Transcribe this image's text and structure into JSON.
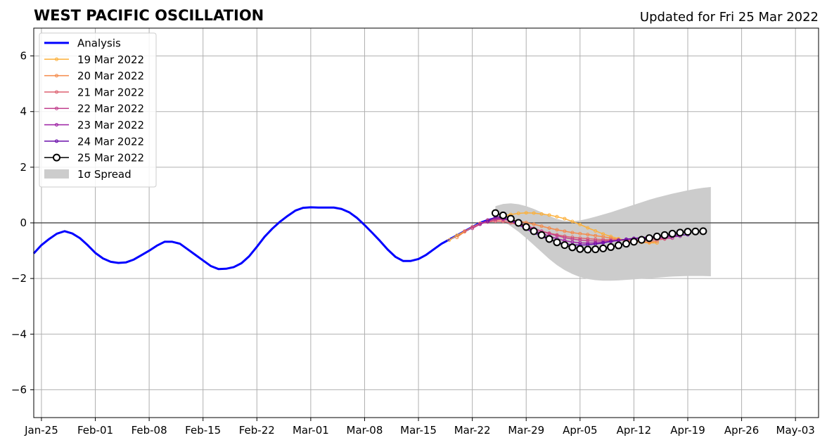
{
  "chart_data": {
    "type": "line",
    "title": "WEST PACIFIC OSCILLATION",
    "subtitle": "Updated for Fri 25 Mar 2022",
    "xlabel": "",
    "ylabel": "",
    "xlim": [
      "2022-01-24",
      "2022-05-06"
    ],
    "ylim": [
      -7,
      7
    ],
    "x_ticks": [
      "Jan-25",
      "Feb-01",
      "Feb-08",
      "Feb-15",
      "Feb-22",
      "Mar-01",
      "Mar-08",
      "Mar-15",
      "Mar-22",
      "Mar-29",
      "Apr-05",
      "Apr-12",
      "Apr-19",
      "Apr-26",
      "May-03"
    ],
    "x_tick_dates": [
      "2022-01-25",
      "2022-02-01",
      "2022-02-08",
      "2022-02-15",
      "2022-02-22",
      "2022-03-01",
      "2022-03-08",
      "2022-03-15",
      "2022-03-22",
      "2022-03-29",
      "2022-04-05",
      "2022-04-12",
      "2022-04-19",
      "2022-04-26",
      "2022-05-03"
    ],
    "y_ticks": [
      6,
      4,
      2,
      0,
      -2,
      -4,
      -6
    ],
    "y_tick_labels": [
      "6",
      "4",
      "2",
      "0",
      "−2",
      "−4",
      "−6"
    ],
    "grid": true,
    "legend_position": "top-left",
    "legend": [
      {
        "label": "Analysis",
        "color": "#0000ff",
        "style": "thick-line"
      },
      {
        "label": "19 Mar 2022",
        "color": "#fcb03a",
        "style": "line-dots"
      },
      {
        "label": "20 Mar 2022",
        "color": "#f48a4a",
        "style": "line-dots"
      },
      {
        "label": "21 Mar 2022",
        "color": "#dd6170",
        "style": "line-dots"
      },
      {
        "label": "22 Mar 2022",
        "color": "#c2408e",
        "style": "line-dots"
      },
      {
        "label": "23 Mar 2022",
        "color": "#9c1fa3",
        "style": "line-dots"
      },
      {
        "label": "24 Mar 2022",
        "color": "#6a0eaa",
        "style": "line-dots"
      },
      {
        "label": "25 Mar 2022",
        "color": "#000000",
        "style": "open-circles"
      },
      {
        "label": "1σ Spread",
        "color": "#cccccc",
        "style": "patch"
      }
    ],
    "analysis": {
      "name": "Analysis",
      "color": "#0000ff",
      "start": "2022-01-24",
      "values": [
        -1.1,
        -0.8,
        -0.58,
        -0.39,
        -0.3,
        -0.38,
        -0.55,
        -0.8,
        -1.08,
        -1.28,
        -1.4,
        -1.44,
        -1.42,
        -1.32,
        -1.16,
        -1.0,
        -0.82,
        -0.68,
        -0.68,
        -0.75,
        -0.95,
        -1.15,
        -1.35,
        -1.55,
        -1.66,
        -1.65,
        -1.59,
        -1.45,
        -1.2,
        -0.86,
        -0.5,
        -0.21,
        0.04,
        0.25,
        0.44,
        0.54,
        0.56,
        0.55,
        0.55,
        0.55,
        0.5,
        0.38,
        0.18,
        -0.08,
        -0.36,
        -0.65,
        -0.96,
        -1.22,
        -1.37,
        -1.37,
        -1.3,
        -1.15,
        -0.95,
        -0.75,
        -0.6,
        -0.45,
        -0.3,
        -0.15,
        0.0,
        0.1,
        0.17,
        0.2
      ]
    },
    "forecasts": [
      {
        "name": "19 Mar 2022",
        "color": "#fcb03a",
        "start": "2022-03-19",
        "values": [
          -0.62,
          -0.45,
          -0.3,
          -0.15,
          -0.02,
          0.08,
          0.17,
          0.24,
          0.3,
          0.34,
          0.36,
          0.35,
          0.32,
          0.28,
          0.22,
          0.15,
          0.05,
          -0.06,
          -0.18,
          -0.29,
          -0.4,
          -0.49,
          -0.57,
          -0.63,
          -0.67,
          -0.7,
          -0.72,
          -0.72
        ]
      },
      {
        "name": "20 Mar 2022",
        "color": "#f48a4a",
        "start": "2022-03-20",
        "values": [
          -0.52,
          -0.32,
          -0.15,
          -0.02,
          0.06,
          0.1,
          0.11,
          0.1,
          0.06,
          0.01,
          -0.05,
          -0.12,
          -0.19,
          -0.25,
          -0.3,
          -0.35,
          -0.39,
          -0.42,
          -0.46,
          -0.5,
          -0.55,
          -0.6,
          -0.64,
          -0.67,
          -0.69,
          -0.69,
          -0.67
        ]
      },
      {
        "name": "21 Mar 2022",
        "color": "#dd6170",
        "start": "2022-03-21",
        "values": [
          -0.3,
          -0.15,
          -0.04,
          0.03,
          0.06,
          0.05,
          0.0,
          -0.07,
          -0.15,
          -0.22,
          -0.3,
          -0.37,
          -0.43,
          -0.48,
          -0.52,
          -0.55,
          -0.57,
          -0.59,
          -0.6,
          -0.61,
          -0.62,
          -0.63,
          -0.64,
          -0.64,
          -0.63,
          -0.61,
          -0.58
        ]
      },
      {
        "name": "22 Mar 2022",
        "color": "#c2408e",
        "start": "2022-03-22",
        "values": [
          -0.2,
          -0.05,
          0.05,
          0.12,
          0.13,
          0.08,
          0.0,
          -0.1,
          -0.2,
          -0.3,
          -0.39,
          -0.46,
          -0.53,
          -0.58,
          -0.62,
          -0.64,
          -0.65,
          -0.65,
          -0.64,
          -0.62,
          -0.6,
          -0.58,
          -0.57,
          -0.56,
          -0.56,
          -0.56,
          -0.55
        ]
      },
      {
        "name": "23 Mar 2022",
        "color": "#9c1fa3",
        "start": "2022-03-23",
        "values": [
          -0.05,
          0.1,
          0.17,
          0.15,
          0.08,
          -0.02,
          -0.14,
          -0.26,
          -0.38,
          -0.48,
          -0.57,
          -0.64,
          -0.69,
          -0.72,
          -0.73,
          -0.72,
          -0.7,
          -0.67,
          -0.63,
          -0.59,
          -0.56,
          -0.54,
          -0.53,
          -0.52,
          -0.51,
          -0.5,
          -0.48
        ]
      },
      {
        "name": "24 Mar 2022",
        "color": "#6a0eaa",
        "start": "2022-03-24",
        "values": [
          0.05,
          0.22,
          0.2,
          0.08,
          -0.07,
          -0.22,
          -0.36,
          -0.49,
          -0.6,
          -0.69,
          -0.75,
          -0.79,
          -0.8,
          -0.79,
          -0.76,
          -0.72,
          -0.67,
          -0.63,
          -0.59,
          -0.56,
          -0.53,
          -0.51,
          -0.49,
          -0.47,
          -0.45,
          -0.44,
          -0.43
        ]
      }
    ],
    "forecast_current": {
      "name": "25 Mar 2022",
      "color": "#000000",
      "start": "2022-03-25",
      "values": [
        0.35,
        0.27,
        0.15,
        0.0,
        -0.15,
        -0.3,
        -0.44,
        -0.58,
        -0.7,
        -0.8,
        -0.88,
        -0.94,
        -0.96,
        -0.95,
        -0.92,
        -0.87,
        -0.81,
        -0.75,
        -0.68,
        -0.61,
        -0.55,
        -0.49,
        -0.44,
        -0.39,
        -0.35,
        -0.32,
        -0.31,
        -0.3
      ]
    },
    "spread": {
      "name": "1σ Spread",
      "color": "#cccccc",
      "start": "2022-03-25",
      "upper": [
        0.6,
        0.68,
        0.7,
        0.67,
        0.6,
        0.5,
        0.38,
        0.25,
        0.14,
        0.07,
        0.06,
        0.09,
        0.15,
        0.22,
        0.3,
        0.38,
        0.47,
        0.56,
        0.65,
        0.74,
        0.83,
        0.91,
        0.98,
        1.05,
        1.11,
        1.17,
        1.22,
        1.26,
        1.29
      ],
      "lower": [
        0.2,
        0.05,
        -0.12,
        -0.32,
        -0.55,
        -0.8,
        -1.05,
        -1.3,
        -1.52,
        -1.7,
        -1.84,
        -1.95,
        -2.02,
        -2.06,
        -2.08,
        -2.08,
        -2.07,
        -2.05,
        -2.03,
        -2.01,
        -1.99,
        -1.97,
        -1.95,
        -1.93,
        -1.92,
        -1.91,
        -1.91,
        -1.91,
        -1.92
      ]
    }
  }
}
